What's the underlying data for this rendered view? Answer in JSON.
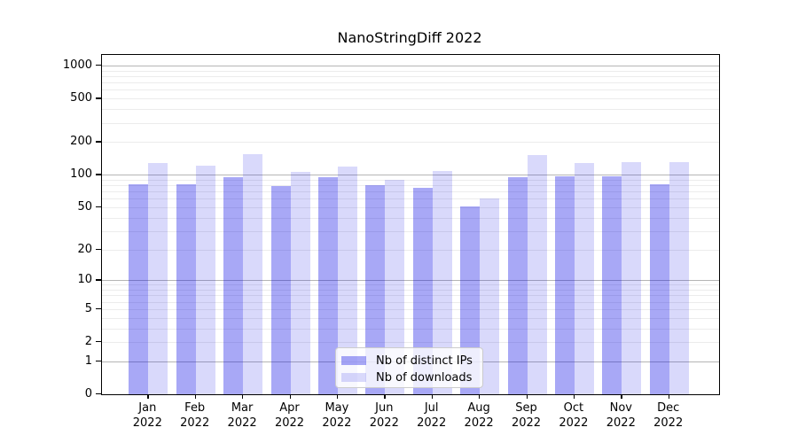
{
  "chart_data": {
    "type": "bar",
    "title": "NanoStringDiff 2022",
    "yscale": "log1p",
    "ylim": [
      0,
      1000
    ],
    "yticks": [
      0,
      1,
      2,
      5,
      10,
      20,
      50,
      100,
      200,
      500,
      1000
    ],
    "grid": "on",
    "legend_position": "lower-center",
    "categories": [
      "Jan",
      "Feb",
      "Mar",
      "Apr",
      "May",
      "Jun",
      "Jul",
      "Aug",
      "Sep",
      "Oct",
      "Nov",
      "Dec"
    ],
    "year_label": "2022",
    "series": [
      {
        "name": "Nb of distinct IPs",
        "color": "#0000e657",
        "values": [
          82,
          82,
          94,
          79,
          94,
          80,
          75,
          51,
          95,
          97,
          96,
          82
        ]
      },
      {
        "name": "Nb of downloads",
        "color": "#0000e626",
        "values": [
          127,
          122,
          155,
          106,
          118,
          90,
          109,
          60,
          151,
          128,
          131,
          130
        ]
      }
    ]
  }
}
